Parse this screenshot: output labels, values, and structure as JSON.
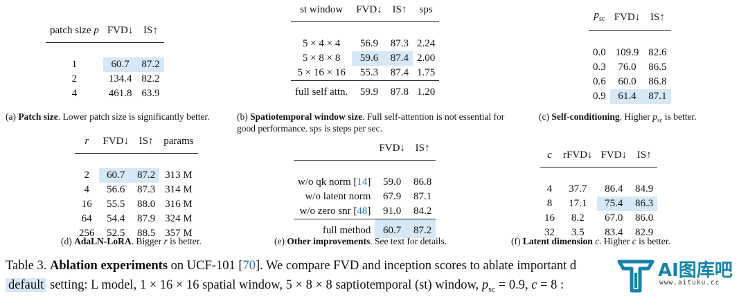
{
  "tables": {
    "a": {
      "headers": [
        "patch size p",
        "FVD↓",
        "IS↑"
      ],
      "rows": [
        [
          "1",
          "60.7",
          "87.2"
        ],
        [
          "2",
          "134.4",
          "82.2"
        ],
        [
          "4",
          "461.8",
          "63.9"
        ]
      ],
      "caption_label": "(a)",
      "caption_bold": "Patch size",
      "caption_text": ". Lower patch size is significantly better."
    },
    "b": {
      "headers": [
        "st window",
        "FVD↓",
        "IS↑",
        "sps"
      ],
      "rows": [
        [
          "5 × 4 × 4",
          "56.9",
          "87.3",
          "2.24"
        ],
        [
          "5 × 8 × 8",
          "59.6",
          "87.4",
          "2.00"
        ],
        [
          "5 × 16 × 16",
          "55.3",
          "87.4",
          "1.75"
        ]
      ],
      "footer": [
        "full self attn.",
        "59.9",
        "87.8",
        "1.20"
      ],
      "caption_label": "(b)",
      "caption_bold": "Spatiotemporal window size",
      "caption_text": ". Full self-attention is not essential for good performance. sps is steps per sec."
    },
    "c": {
      "headers": [
        "p_sc",
        "FVD↓",
        "IS↑"
      ],
      "rows": [
        [
          "0.0",
          "109.9",
          "82.6"
        ],
        [
          "0.3",
          "76.0",
          "86.5"
        ],
        [
          "0.6",
          "60.0",
          "86.8"
        ],
        [
          "0.9",
          "61.4",
          "87.1"
        ]
      ],
      "caption_label": "(c)",
      "caption_bold": "Self-conditioning",
      "caption_pre": ". Higher ",
      "caption_var": "p",
      "caption_sub": "sc",
      "caption_post": " is better."
    },
    "d": {
      "headers": [
        "r",
        "FVD↓",
        "IS↑",
        "params"
      ],
      "rows": [
        [
          "2",
          "60.7",
          "87.2",
          "313 M"
        ],
        [
          "4",
          "56.6",
          "87.3",
          "314 M"
        ],
        [
          "16",
          "55.5",
          "88.0",
          "316 M"
        ],
        [
          "64",
          "54.4",
          "87.9",
          "324 M"
        ],
        [
          "256",
          "52.5",
          "88.5",
          "357 M"
        ]
      ],
      "caption_label": "(d)",
      "caption_bold": "AdaLN-LoRA",
      "caption_pre": ". Bigger ",
      "caption_var": "r",
      "caption_post": " is better."
    },
    "e": {
      "headers": [
        "",
        "FVD↓",
        "IS↑"
      ],
      "rows": [
        {
          "name": "w/o qk norm",
          "ref": "14",
          "fvd": "59.0",
          "is": "86.8"
        },
        {
          "name": "w/o latent norm",
          "ref": "",
          "fvd": "67.9",
          "is": "87.1"
        },
        {
          "name": "w/o zero snr",
          "ref": "48",
          "fvd": "91.0",
          "is": "84.2"
        }
      ],
      "footer": [
        "full method",
        "60.7",
        "87.2"
      ],
      "caption_label": "(e)",
      "caption_bold": "Other improvements",
      "caption_text": ". See text for details."
    },
    "f": {
      "headers": [
        "c",
        "rFVD↓",
        "FVD↓",
        "IS↑"
      ],
      "rows": [
        [
          "4",
          "37.7",
          "86.4",
          "84.9"
        ],
        [
          "8",
          "17.1",
          "75.4",
          "86.3"
        ],
        [
          "16",
          "8.2",
          "67.0",
          "86.0"
        ],
        [
          "32",
          "3.5",
          "83.4",
          "82.9"
        ]
      ],
      "caption_label": "(f)",
      "caption_bold": "Latent dimension",
      "caption_pre": " ",
      "caption_var": "c",
      "caption_mid": ". Higher ",
      "caption_var2": "c",
      "caption_post": " is better."
    }
  },
  "main_caption": {
    "line1_prefix": "Table 3. ",
    "line1_bold": "Ablation experiments",
    "line1_text": " on UCF-101 [",
    "line1_ref": "70",
    "line1_rest": "]. We compare FVD and inception scores to ablate important d",
    "line2_tag": "default",
    "line2_text": " setting: L model, 1 × 16 × 16 spatial window, 5 × 8 × 8 saptiotemporal (st) window, ",
    "line2_var": "p",
    "line2_sub": "sc",
    "line2_rest": " = 0.9, ",
    "line2_var2": "c",
    "line2_end": " = 8 :"
  },
  "watermark": {
    "brand": "AI图库吧",
    "url": "www.aituku.cc",
    "icon": "aituku-logo-icon",
    "color": "#1583a8"
  },
  "colors": {
    "highlight": "#d6e7f5",
    "ref_link": "#2a6cb3"
  }
}
